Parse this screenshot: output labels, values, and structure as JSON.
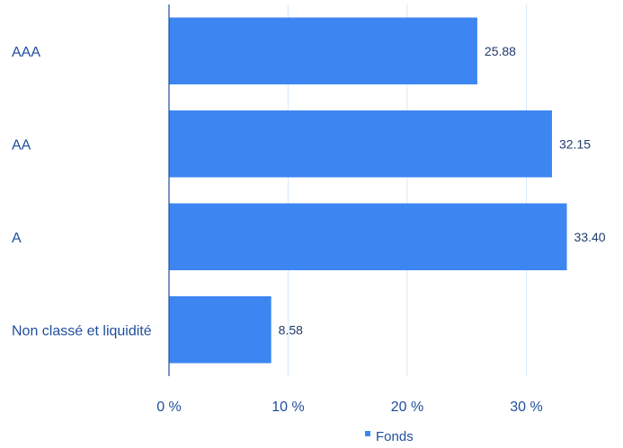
{
  "chart_data": {
    "type": "bar",
    "orientation": "horizontal",
    "categories": [
      "AAA",
      "AA",
      "A",
      "Non classé et liquidité"
    ],
    "series": [
      {
        "name": "Fonds",
        "values": [
          25.88,
          32.15,
          33.4,
          8.58
        ],
        "value_labels": [
          "25.88",
          "32.15",
          "33.40",
          "8.58"
        ],
        "color": "#3d86f2"
      }
    ],
    "xlim": [
      0,
      37.5
    ],
    "ticks": [
      0,
      10,
      20,
      30
    ],
    "tick_labels": [
      "0 %",
      "10 %",
      "20 %",
      "30 %"
    ],
    "grid": true,
    "legend": "bottom",
    "colors": {
      "bar": "#3d86f2",
      "grid": "#d9e8f8",
      "axis": "#1f4e9c",
      "label": "#1f4e9c",
      "value_label": "#1f3a6b"
    }
  }
}
